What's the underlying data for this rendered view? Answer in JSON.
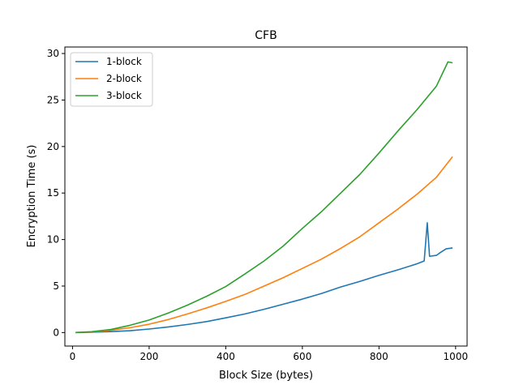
{
  "chart_data": {
    "type": "line",
    "title": "CFB",
    "xlabel": "Block Size (bytes)",
    "ylabel": "Encryption Time (s)",
    "xlim": [
      -20,
      1030
    ],
    "ylim": [
      -1.45,
      30.7
    ],
    "xticks": [
      0,
      200,
      400,
      600,
      800,
      1000
    ],
    "yticks": [
      0,
      5,
      10,
      15,
      20,
      25,
      30
    ],
    "grid": false,
    "legend_position": "top-left",
    "series": [
      {
        "name": "1-block",
        "color": "#1f77b4",
        "points": [
          [
            8,
            0.0
          ],
          [
            50,
            0.04
          ],
          [
            100,
            0.1
          ],
          [
            150,
            0.2
          ],
          [
            200,
            0.38
          ],
          [
            250,
            0.6
          ],
          [
            300,
            0.87
          ],
          [
            350,
            1.18
          ],
          [
            400,
            1.58
          ],
          [
            450,
            2.0
          ],
          [
            500,
            2.5
          ],
          [
            550,
            3.05
          ],
          [
            600,
            3.6
          ],
          [
            650,
            4.2
          ],
          [
            700,
            4.9
          ],
          [
            750,
            5.5
          ],
          [
            800,
            6.15
          ],
          [
            850,
            6.75
          ],
          [
            900,
            7.4
          ],
          [
            918,
            7.7
          ],
          [
            926,
            11.8
          ],
          [
            932,
            8.2
          ],
          [
            950,
            8.3
          ],
          [
            960,
            8.6
          ],
          [
            975,
            9.0
          ],
          [
            992,
            9.1
          ]
        ]
      },
      {
        "name": "2-block",
        "color": "#ff7f0e",
        "points": [
          [
            8,
            0.0
          ],
          [
            50,
            0.06
          ],
          [
            100,
            0.24
          ],
          [
            150,
            0.52
          ],
          [
            200,
            0.9
          ],
          [
            250,
            1.4
          ],
          [
            300,
            2.0
          ],
          [
            350,
            2.65
          ],
          [
            400,
            3.35
          ],
          [
            450,
            4.1
          ],
          [
            500,
            5.0
          ],
          [
            550,
            5.9
          ],
          [
            600,
            6.9
          ],
          [
            650,
            7.9
          ],
          [
            700,
            9.05
          ],
          [
            750,
            10.3
          ],
          [
            800,
            11.8
          ],
          [
            850,
            13.3
          ],
          [
            900,
            14.9
          ],
          [
            950,
            16.7
          ],
          [
            992,
            18.9
          ]
        ]
      },
      {
        "name": "3-block",
        "color": "#2ca02c",
        "points": [
          [
            8,
            0.0
          ],
          [
            50,
            0.09
          ],
          [
            100,
            0.33
          ],
          [
            150,
            0.78
          ],
          [
            200,
            1.35
          ],
          [
            250,
            2.1
          ],
          [
            300,
            2.95
          ],
          [
            350,
            3.9
          ],
          [
            400,
            4.95
          ],
          [
            450,
            6.3
          ],
          [
            500,
            7.7
          ],
          [
            550,
            9.3
          ],
          [
            600,
            11.2
          ],
          [
            650,
            13.0
          ],
          [
            700,
            15.0
          ],
          [
            750,
            17.0
          ],
          [
            800,
            19.3
          ],
          [
            850,
            21.7
          ],
          [
            900,
            24.0
          ],
          [
            950,
            26.5
          ],
          [
            980,
            29.1
          ],
          [
            992,
            29.0
          ]
        ]
      }
    ]
  }
}
